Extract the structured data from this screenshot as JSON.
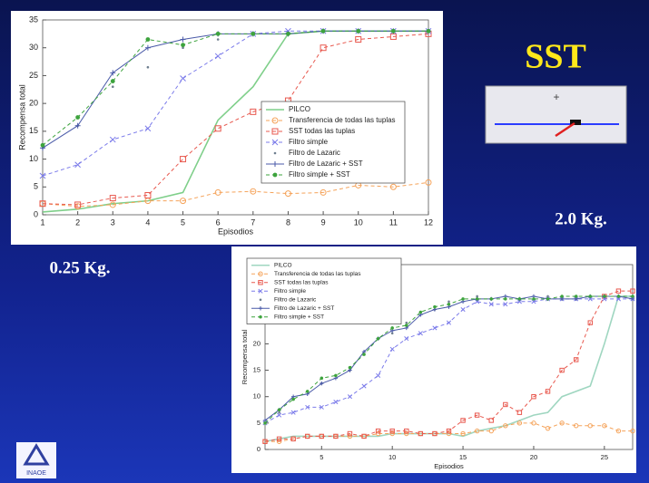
{
  "slide": {
    "title": "SST",
    "mass_right": "2.0 Kg.",
    "mass_left": "0.25 Kg.",
    "logo": "INAOE"
  },
  "chart_data": [
    {
      "type": "line",
      "xlabel": "Episodios",
      "ylabel": "Recompensa total",
      "x": [
        1,
        2,
        3,
        4,
        5,
        6,
        7,
        8,
        9,
        10,
        11,
        12
      ],
      "xlim": [
        1,
        12
      ],
      "xticks": [
        1,
        2,
        3,
        4,
        5,
        6,
        7,
        8,
        9,
        10,
        11,
        12
      ],
      "ylim": [
        0,
        35
      ],
      "yticks": [
        0,
        5,
        10,
        15,
        20,
        25,
        30,
        35
      ],
      "legend": "center-right",
      "series": [
        {
          "name": "PILCO",
          "color": "#7fcf8a",
          "style": "solid",
          "marker": "none",
          "values": [
            0.5,
            1,
            2,
            2.5,
            4,
            17,
            23,
            32.5,
            33,
            33,
            33,
            33
          ]
        },
        {
          "name": "Transferencia de todas las tuplas",
          "color": "#f5a35a",
          "style": "dashed",
          "marker": "o",
          "values": [
            2,
            1.5,
            1.8,
            2.5,
            2.5,
            4,
            4.2,
            3.8,
            4,
            5.3,
            5,
            5.8
          ]
        },
        {
          "name": "SST  todas las tuplas",
          "color": "#e8594f",
          "style": "dashed",
          "marker": "s",
          "values": [
            2,
            1.8,
            3,
            3.5,
            10,
            15.5,
            18.5,
            20.5,
            30,
            31.5,
            32,
            32.5
          ]
        },
        {
          "name": "Filtro simple",
          "color": "#7b7bea",
          "style": "dashed",
          "marker": "x",
          "values": [
            7,
            9,
            13.5,
            15.5,
            24.5,
            28.5,
            32.5,
            33,
            33,
            33,
            33,
            33
          ]
        },
        {
          "name": "Filtro de Lazaric",
          "color": "#6f7f8f",
          "style": "none",
          "marker": ".",
          "values": [
            12,
            16,
            23,
            26.5,
            30,
            31.5,
            32.5,
            32.5,
            33,
            33,
            33,
            33
          ]
        },
        {
          "name": "Filtro de Lazaric + SST",
          "color": "#4a5aa8",
          "style": "solid",
          "marker": "+",
          "values": [
            12,
            16,
            25.5,
            30,
            31.5,
            32.5,
            32.5,
            32.5,
            33,
            33,
            33,
            33
          ]
        },
        {
          "name": "Filtro simple + SST",
          "color": "#3da33d",
          "style": "dashed",
          "marker": "*",
          "values": [
            12.5,
            17.5,
            24,
            31.5,
            30.5,
            32.5,
            32.5,
            32.5,
            33,
            33,
            33,
            33
          ]
        }
      ]
    },
    {
      "type": "line",
      "xlabel": "Episodios",
      "ylabel": "Recompensa total",
      "x": [
        1,
        2,
        3,
        4,
        5,
        6,
        7,
        8,
        9,
        10,
        11,
        12,
        13,
        14,
        15,
        16,
        17,
        18,
        19,
        20,
        21,
        22,
        23,
        24,
        25,
        26,
        27
      ],
      "xlim": [
        1,
        27
      ],
      "xticks": [
        5,
        10,
        15,
        20,
        25
      ],
      "ylim": [
        0,
        35
      ],
      "yticks": [
        0,
        5,
        10,
        15,
        20,
        25,
        30,
        35
      ],
      "legend": "upper-left",
      "series": [
        {
          "name": "PILCO",
          "color": "#9fd6c0",
          "style": "solid",
          "marker": "none",
          "values": [
            1.5,
            2,
            2.5,
            2.5,
            2.5,
            2.5,
            2.5,
            2.5,
            2.5,
            3,
            3,
            3,
            3,
            3,
            2.5,
            3.5,
            4,
            4.5,
            5.5,
            6.5,
            7,
            10,
            11,
            12,
            20,
            29,
            29
          ]
        },
        {
          "name": "Transferencia de todas las tuplas",
          "color": "#f5a35a",
          "style": "dashed",
          "marker": "o",
          "values": [
            1.5,
            1.5,
            2,
            2.5,
            2.5,
            2.5,
            2.5,
            2.5,
            3,
            3,
            3,
            3,
            3,
            3,
            3,
            3.5,
            3.5,
            4.5,
            5,
            5,
            4,
            5,
            4.5,
            4.5,
            4.5,
            3.5,
            3.5
          ]
        },
        {
          "name": "SST todas las tuplas",
          "color": "#e8594f",
          "style": "dashed",
          "marker": "s",
          "values": [
            1.5,
            2,
            2,
            2.5,
            2.5,
            2.5,
            3,
            2.5,
            3.5,
            3.5,
            3.5,
            3,
            3,
            3.5,
            5.5,
            6.5,
            5.5,
            8.5,
            7,
            10,
            11,
            15,
            17,
            24,
            29,
            30,
            30
          ]
        },
        {
          "name": "Filtro simple",
          "color": "#7b7bea",
          "style": "dashed",
          "marker": "x",
          "values": [
            5,
            6.5,
            7,
            8,
            8,
            9,
            10,
            12,
            14,
            19,
            21,
            22,
            23,
            24,
            26.5,
            28,
            27.5,
            27.5,
            28,
            28,
            28.5,
            28.5,
            28.5,
            28.5,
            28.5,
            28.5,
            28.5
          ]
        },
        {
          "name": "Filtro de Lazaric",
          "color": "#6f7f8f",
          "style": "none",
          "marker": ".",
          "values": [
            5,
            7,
            9.5,
            11,
            12.5,
            14,
            15,
            18,
            21,
            22,
            24,
            26,
            26.5,
            28,
            28.5,
            29,
            28.5,
            28.5,
            28.5,
            28.5,
            29,
            28.5,
            28.5,
            29,
            29,
            29,
            29
          ]
        },
        {
          "name": "Filtro de Lazaric + SST",
          "color": "#4a5aa8",
          "style": "solid",
          "marker": "+",
          "values": [
            5.5,
            7.5,
            10,
            10.5,
            12.5,
            13.5,
            15,
            18.5,
            21,
            22.5,
            23,
            25.5,
            26.5,
            27,
            28,
            28.5,
            28.5,
            29,
            28.5,
            29,
            28.5,
            28.5,
            28.5,
            29,
            29,
            29,
            28.5
          ]
        },
        {
          "name": "Filtro simple + SST",
          "color": "#3da33d",
          "style": "dashed",
          "marker": "*",
          "values": [
            5,
            7.5,
            9.5,
            11,
            13.5,
            14,
            15.5,
            18,
            21,
            23,
            23.5,
            26,
            27,
            27.5,
            28.5,
            28.5,
            28.5,
            28.5,
            28.5,
            28.5,
            28.5,
            29,
            29,
            29,
            29,
            29,
            29
          ]
        }
      ]
    }
  ]
}
